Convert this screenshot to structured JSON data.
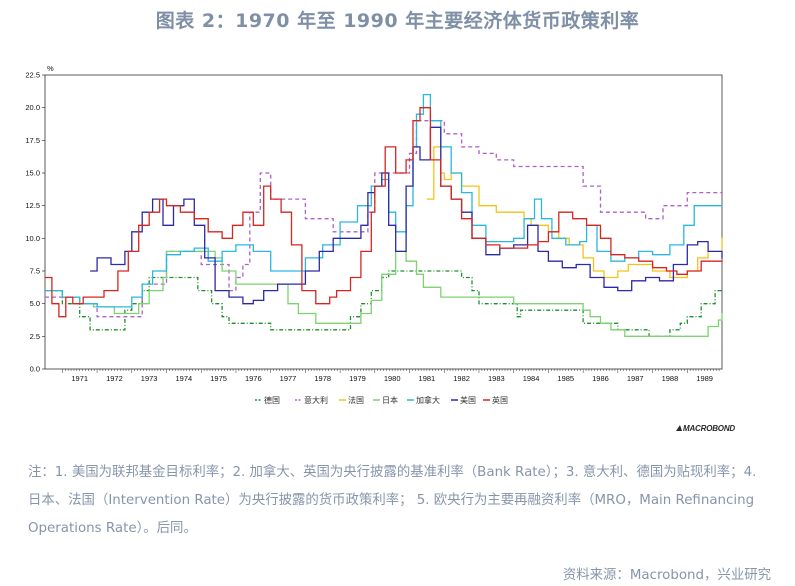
{
  "title": "图表 2：1970 年至 1990 年主要经济体货币政策利率",
  "note": "注：1. 美国为联邦基金目标利率；2. 加拿大、英国为央行披露的基准利率（Bank Rate）；3. 意大利、德国为贴现利率；4. 日本、法国（Intervention Rate）为央行披露的货币政策利率； 5. 欧央行为主要再融资利率（MRO，Main Refinancing Operations Rate）。后同。",
  "source": "资料来源：Macrobond，兴业研究",
  "brand": "MACROBOND",
  "chart_data": {
    "type": "line",
    "unit": "%",
    "xlim": [
      1970.5,
      1990.0
    ],
    "ylim": [
      0,
      22.5
    ],
    "yticks": [
      "0.0",
      "2.5",
      "5.0",
      "7.5",
      "10.0",
      "12.5",
      "15.0",
      "17.5",
      "20.0",
      "22.5"
    ],
    "xticks": [
      "1971",
      "1972",
      "1973",
      "1974",
      "1975",
      "1976",
      "1977",
      "1978",
      "1979",
      "1980",
      "1981",
      "1982",
      "1983",
      "1984",
      "1985",
      "1986",
      "1987",
      "1988",
      "1989"
    ],
    "grid": false,
    "legend_position": "bottom-center",
    "series": [
      {
        "name": "德国",
        "color": "#1f8f2f",
        "style": "dash-dot",
        "x": [
          1970.5,
          1970.7,
          1971.0,
          1971.5,
          1971.8,
          1972.0,
          1972.8,
          1973.0,
          1973.3,
          1973.5,
          1974.9,
          1975.3,
          1975.6,
          1975.8,
          1977.0,
          1977.9,
          1979.1,
          1979.3,
          1979.6,
          1979.9,
          1980.2,
          1980.4,
          1982.5,
          1982.8,
          1983.0,
          1984.1,
          1984.2,
          1986.0,
          1987.0,
          1987.9,
          1988.5,
          1988.8,
          1989.0,
          1989.4,
          1989.8,
          1990.0
        ],
        "y": [
          6.0,
          6.0,
          5.0,
          4.0,
          3.0,
          3.0,
          4.5,
          5.0,
          6.0,
          7.0,
          6.0,
          5.0,
          4.0,
          3.5,
          3.0,
          3.0,
          3.0,
          4.0,
          5.0,
          6.0,
          7.0,
          7.5,
          7.0,
          6.0,
          5.0,
          4.0,
          4.5,
          3.5,
          3.0,
          2.5,
          3.0,
          3.5,
          4.0,
          5.0,
          6.0,
          6.0
        ]
      },
      {
        "name": "意大利",
        "color": "#b05fc9",
        "style": "dash",
        "x": [
          1970.5,
          1970.7,
          1971.5,
          1972.0,
          1973.0,
          1973.3,
          1974.0,
          1975.0,
          1975.8,
          1976.0,
          1976.2,
          1976.4,
          1976.7,
          1977.0,
          1978.0,
          1978.8,
          1979.8,
          1980.0,
          1981.0,
          1981.2,
          1982.0,
          1982.5,
          1983.0,
          1983.5,
          1984.0,
          1985.0,
          1986.0,
          1986.5,
          1987.8,
          1988.3,
          1989.0,
          1990.0
        ],
        "y": [
          5.5,
          5.5,
          5.0,
          4.0,
          4.0,
          6.5,
          9.0,
          8.0,
          6.0,
          7.0,
          8.0,
          12.0,
          15.0,
          13.0,
          11.5,
          10.5,
          12.0,
          15.0,
          16.5,
          19.0,
          18.0,
          17.0,
          16.5,
          16.0,
          15.5,
          15.5,
          14.0,
          12.0,
          11.5,
          12.5,
          13.5,
          13.5
        ]
      },
      {
        "name": "法国",
        "color": "#f5c21b",
        "style": "solid",
        "x": [
          1981.5,
          1981.7,
          1981.9,
          1982.0,
          1982.2,
          1982.5,
          1983.0,
          1983.5,
          1984.0,
          1984.3,
          1984.5,
          1985.0,
          1985.3,
          1985.6,
          1986.0,
          1986.3,
          1986.6,
          1987.0,
          1987.3,
          1987.6,
          1988.0,
          1988.5,
          1988.8,
          1989.0,
          1989.3,
          1989.6,
          1990.0
        ],
        "y": [
          13.0,
          17.0,
          15.0,
          14.5,
          15.0,
          14.0,
          12.5,
          12.0,
          12.0,
          11.5,
          11.0,
          10.5,
          10.0,
          9.5,
          8.5,
          7.5,
          7.0,
          7.5,
          8.0,
          8.0,
          7.5,
          7.0,
          7.0,
          7.5,
          8.5,
          9.0,
          10.0
        ]
      },
      {
        "name": "日本",
        "color": "#7cd36f",
        "style": "solid",
        "x": [
          1970.5,
          1971.0,
          1971.5,
          1971.9,
          1972.5,
          1973.2,
          1973.5,
          1973.9,
          1974.0,
          1975.4,
          1975.6,
          1976.0,
          1977.2,
          1977.5,
          1977.8,
          1978.3,
          1979.3,
          1979.6,
          1979.9,
          1980.2,
          1980.6,
          1980.9,
          1981.2,
          1981.4,
          1981.9,
          1983.8,
          1984.0,
          1986.0,
          1986.2,
          1986.5,
          1986.8,
          1987.2,
          1989.4,
          1989.6,
          1989.9,
          1990.0
        ],
        "y": [
          6.0,
          5.5,
          5.0,
          4.75,
          4.25,
          5.0,
          6.0,
          7.0,
          9.0,
          8.5,
          7.5,
          6.5,
          6.5,
          5.0,
          4.25,
          3.5,
          3.5,
          4.25,
          5.25,
          7.25,
          9.0,
          8.25,
          7.25,
          6.25,
          5.5,
          5.5,
          5.0,
          4.5,
          4.0,
          3.5,
          3.0,
          2.5,
          2.5,
          3.25,
          3.75,
          4.25
        ]
      },
      {
        "name": "加拿大",
        "color": "#2ab7e0",
        "style": "solid",
        "x": [
          1970.5,
          1971.0,
          1971.5,
          1972.0,
          1972.5,
          1973.0,
          1973.3,
          1973.6,
          1974.0,
          1974.4,
          1974.8,
          1975.2,
          1975.6,
          1976.0,
          1976.5,
          1977.0,
          1977.5,
          1978.0,
          1978.5,
          1979.0,
          1979.5,
          1979.9,
          1980.2,
          1980.4,
          1980.6,
          1980.9,
          1981.1,
          1981.2,
          1981.4,
          1981.6,
          1981.9,
          1982.2,
          1982.5,
          1982.8,
          1983.2,
          1983.6,
          1984.0,
          1984.3,
          1984.6,
          1984.8,
          1985.1,
          1985.5,
          1985.9,
          1986.1,
          1986.4,
          1986.8,
          1987.2,
          1987.6,
          1988.0,
          1988.5,
          1988.9,
          1989.2,
          1989.6,
          1990.0
        ],
        "y": [
          6.0,
          5.5,
          5.0,
          4.75,
          4.75,
          5.5,
          6.5,
          7.5,
          8.75,
          9.0,
          9.25,
          8.25,
          9.0,
          9.5,
          9.0,
          7.5,
          7.5,
          8.5,
          9.5,
          11.25,
          12.5,
          14.0,
          14.5,
          12.0,
          10.5,
          12.5,
          17.0,
          19.5,
          21.0,
          19.0,
          17.0,
          15.0,
          13.5,
          11.0,
          9.75,
          9.75,
          10.0,
          11.5,
          13.0,
          11.5,
          10.0,
          9.5,
          9.75,
          11.0,
          9.0,
          8.25,
          8.5,
          9.0,
          8.75,
          9.5,
          11.0,
          12.5,
          12.5,
          12.5
        ]
      },
      {
        "name": "美国",
        "color": "#2c29a8",
        "style": "solid",
        "x": [
          1971.8,
          1972.0,
          1972.4,
          1972.8,
          1973.0,
          1973.3,
          1973.6,
          1973.9,
          1974.2,
          1974.5,
          1974.8,
          1975.1,
          1975.4,
          1975.8,
          1976.2,
          1976.5,
          1976.8,
          1977.2,
          1977.6,
          1978.0,
          1978.4,
          1978.8,
          1979.2,
          1979.6,
          1979.8,
          1980.0,
          1980.2,
          1980.4,
          1980.6,
          1980.9,
          1981.1,
          1981.3,
          1981.6,
          1981.9,
          1982.2,
          1982.5,
          1982.8,
          1983.2,
          1983.6,
          1984.0,
          1984.4,
          1984.7,
          1985.0,
          1985.4,
          1985.8,
          1986.2,
          1986.6,
          1987.0,
          1987.4,
          1987.8,
          1988.2,
          1988.6,
          1989.0,
          1989.3,
          1989.6,
          1990.0
        ],
        "y": [
          7.5,
          8.5,
          8.0,
          9.0,
          10.5,
          12.0,
          13.0,
          11.0,
          12.5,
          13.0,
          11.0,
          8.5,
          6.0,
          5.5,
          5.0,
          5.25,
          6.0,
          6.5,
          6.5,
          7.5,
          9.0,
          10.0,
          10.0,
          11.0,
          13.5,
          14.0,
          15.0,
          11.0,
          9.0,
          14.0,
          17.0,
          16.0,
          18.5,
          14.0,
          13.0,
          12.0,
          10.0,
          8.75,
          9.25,
          9.5,
          11.0,
          9.0,
          8.25,
          7.75,
          8.0,
          7.0,
          6.25,
          6.0,
          6.75,
          7.0,
          6.75,
          8.0,
          9.5,
          9.75,
          9.0,
          8.5
        ]
      },
      {
        "name": "英国",
        "color": "#d6261f",
        "style": "solid",
        "x": [
          1970.5,
          1970.7,
          1970.9,
          1971.1,
          1971.3,
          1971.6,
          1972.2,
          1972.6,
          1972.9,
          1973.2,
          1973.5,
          1973.8,
          1974.0,
          1974.4,
          1974.8,
          1975.2,
          1975.6,
          1975.9,
          1976.2,
          1976.5,
          1976.8,
          1977.0,
          1977.3,
          1977.6,
          1977.9,
          1978.3,
          1978.7,
          1978.9,
          1979.3,
          1979.6,
          1979.9,
          1980.0,
          1980.3,
          1980.6,
          1980.9,
          1981.1,
          1981.3,
          1981.6,
          1981.9,
          1982.2,
          1982.5,
          1982.8,
          1983.2,
          1983.6,
          1984.0,
          1984.4,
          1984.7,
          1985.0,
          1985.3,
          1985.7,
          1986.1,
          1986.5,
          1986.8,
          1987.2,
          1987.6,
          1988.0,
          1988.4,
          1988.7,
          1989.0,
          1989.4,
          1989.7,
          1990.0
        ],
        "y": [
          7.0,
          5.0,
          4.0,
          5.5,
          5.0,
          5.5,
          6.0,
          7.5,
          9.0,
          11.0,
          12.0,
          13.0,
          12.5,
          12.0,
          11.5,
          10.5,
          10.0,
          11.0,
          12.0,
          11.0,
          14.0,
          13.0,
          12.0,
          9.5,
          6.0,
          5.0,
          5.5,
          6.0,
          7.0,
          9.0,
          12.0,
          14.0,
          17.0,
          15.0,
          16.0,
          19.0,
          20.0,
          16.0,
          14.0,
          13.0,
          11.5,
          10.0,
          9.5,
          9.25,
          9.25,
          9.5,
          9.75,
          10.5,
          12.0,
          11.5,
          11.0,
          10.0,
          8.75,
          8.5,
          8.25,
          7.75,
          7.5,
          7.25,
          7.5,
          8.25,
          8.25,
          8.25
        ]
      }
    ]
  },
  "legend": [
    {
      "label": "德国",
      "color": "#1f8f2f",
      "style": "dash-dot"
    },
    {
      "label": "意大利",
      "color": "#b05fc9",
      "style": "dash"
    },
    {
      "label": "法国",
      "color": "#f5c21b",
      "style": "solid"
    },
    {
      "label": "日本",
      "color": "#7cd36f",
      "style": "solid"
    },
    {
      "label": "加拿大",
      "color": "#2ab7e0",
      "style": "solid"
    },
    {
      "label": "美国",
      "color": "#2c29a8",
      "style": "solid"
    },
    {
      "label": "英国",
      "color": "#d6261f",
      "style": "solid"
    }
  ]
}
